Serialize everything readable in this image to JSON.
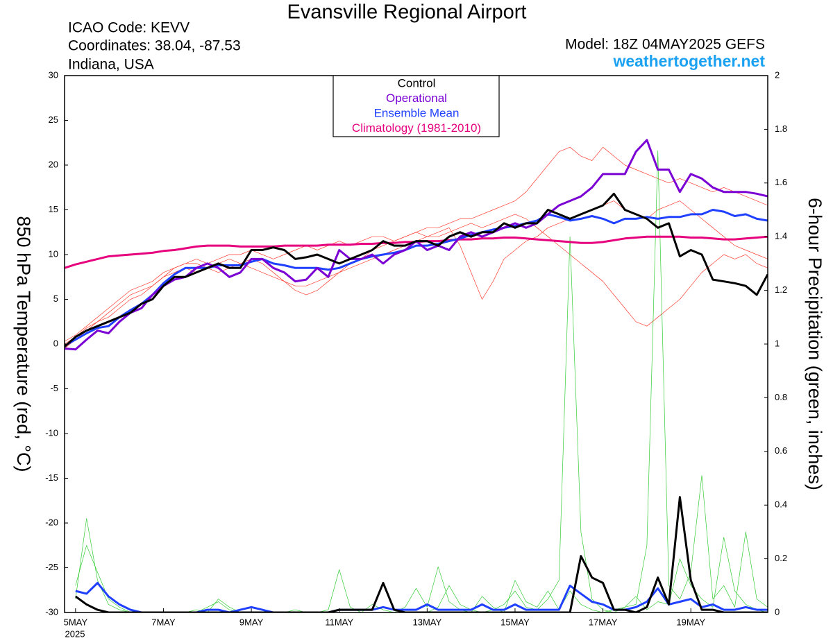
{
  "chart_data": {
    "type": "line",
    "title": "Evansville Regional Airport",
    "info_lines": [
      "ICAO Code: KEVV",
      "Coordinates: 38.04, -87.53",
      "Indiana, USA"
    ],
    "model": "Model: 18Z 04MAY2025 GEFS",
    "site": "weathertogether.net",
    "ylabel": "850 hPa Temperature (red, °C)",
    "y2label": "6-hour Precipitation (green, inches)",
    "x_year_label": "2025",
    "xlim": [
      4.75,
      20.75
    ],
    "xticks": [
      {
        "value": 5,
        "label": "5MAY"
      },
      {
        "value": 7,
        "label": "7MAY"
      },
      {
        "value": 9,
        "label": "9MAY"
      },
      {
        "value": 11,
        "label": "11MAY"
      },
      {
        "value": 13,
        "label": "13MAY"
      },
      {
        "value": 15,
        "label": "15MAY"
      },
      {
        "value": 17,
        "label": "17MAY"
      },
      {
        "value": 19,
        "label": "19MAY"
      }
    ],
    "ylim": [
      -30,
      30
    ],
    "yticks": [
      -30,
      -25,
      -20,
      -15,
      -10,
      -5,
      0,
      5,
      10,
      15,
      20,
      25,
      30
    ],
    "y2lim": [
      0,
      2
    ],
    "y2ticks": [
      0,
      0.2,
      0.4,
      0.6,
      0.8,
      1,
      1.2,
      1.4,
      1.6,
      1.8,
      2
    ],
    "legend": "top",
    "x": [
      4.75,
      5,
      5.25,
      5.5,
      5.75,
      6,
      6.25,
      6.5,
      6.75,
      7,
      7.25,
      7.5,
      7.75,
      8,
      8.25,
      8.5,
      8.75,
      9,
      9.25,
      9.5,
      9.75,
      10,
      10.25,
      10.5,
      10.75,
      11,
      11.25,
      11.5,
      11.75,
      12,
      12.25,
      12.5,
      12.75,
      13,
      13.25,
      13.5,
      13.75,
      14,
      14.25,
      14.5,
      14.75,
      15,
      15.25,
      15.5,
      15.75,
      16,
      16.25,
      16.5,
      16.75,
      17,
      17.25,
      17.5,
      17.75,
      18,
      18.25,
      18.5,
      18.75,
      19,
      19.25,
      19.5,
      19.75,
      20,
      20.25,
      20.5,
      20.75
    ],
    "series": [
      {
        "color": "#ff3b2f",
        "width": 0.7,
        "values": [
          0.0,
          0.8,
          1.8,
          2.5,
          3.5,
          4.5,
          5.5,
          6.0,
          6.5,
          7.5,
          8.0,
          8.5,
          8.0,
          8.5,
          9.0,
          9.5,
          9.0,
          8.5,
          8.0,
          7.5,
          7.0,
          6.5,
          6.5,
          7.0,
          7.5,
          8.0,
          8.5,
          9.0,
          9.5,
          10.0,
          10.5,
          11.0,
          11.5,
          12.0,
          12.0,
          12.5,
          13.0,
          13.5,
          13.0,
          13.5,
          14.0,
          14.5,
          14.0,
          13.0,
          12.0,
          11.0,
          10.0,
          9.0,
          8.0,
          7.0,
          5.5,
          4.0,
          2.5,
          2.0,
          3.0,
          4.0,
          5.0,
          6.5,
          8.0,
          9.0,
          10.0,
          9.5,
          10.0,
          9.0,
          8.5
        ]
      },
      {
        "color": "#ff3b2f",
        "width": 0.7,
        "values": [
          -0.5,
          0.5,
          1.5,
          2.5,
          3.0,
          4.0,
          5.0,
          5.5,
          6.5,
          7.5,
          8.5,
          9.0,
          9.5,
          9.0,
          9.5,
          10.0,
          10.0,
          10.5,
          10.0,
          9.5,
          10.0,
          10.5,
          11.0,
          10.5,
          11.0,
          11.5,
          11.0,
          11.5,
          12.0,
          12.0,
          11.5,
          12.0,
          12.5,
          13.0,
          13.0,
          13.5,
          14.0,
          14.0,
          14.5,
          15.0,
          15.5,
          16.0,
          17.0,
          18.5,
          20.0,
          21.5,
          22.0,
          21.0,
          20.5,
          22.0,
          21.0,
          20.0,
          19.5,
          19.0,
          18.5,
          18.0,
          18.5,
          18.0,
          17.5,
          17.0,
          17.5,
          17.0,
          16.5,
          16.0,
          15.5
        ]
      },
      {
        "color": "#ff3b2f",
        "width": 0.7,
        "values": [
          0.3,
          1.0,
          2.0,
          3.0,
          4.0,
          5.0,
          6.0,
          6.5,
          7.0,
          8.0,
          8.5,
          9.0,
          9.0,
          8.5,
          8.0,
          8.5,
          9.0,
          9.5,
          9.0,
          8.0,
          7.0,
          6.0,
          5.5,
          6.0,
          7.0,
          8.0,
          9.0,
          9.5,
          10.5,
          11.0,
          11.5,
          12.0,
          12.5,
          12.0,
          12.5,
          13.0,
          11.0,
          8.0,
          5.0,
          7.0,
          9.5,
          10.5,
          11.5,
          12.0,
          13.0,
          13.5,
          14.0,
          14.5,
          15.0,
          15.5,
          16.0,
          15.0,
          14.5,
          14.0,
          15.0,
          15.5,
          16.0,
          15.0,
          14.0,
          13.0,
          12.0,
          11.0,
          10.5,
          10.0,
          9.5
        ]
      },
      {
        "color": "#33cc33",
        "width": 0.7,
        "axis": "y2",
        "values": [
          null,
          0.1,
          0.25,
          0.15,
          0.05,
          0.02,
          0,
          0,
          0,
          0,
          0,
          0,
          0,
          0.02,
          0.04,
          0.01,
          0,
          0,
          0,
          0,
          0,
          0,
          0,
          0,
          0.01,
          0.16,
          0.02,
          0,
          0,
          0,
          0,
          0,
          0,
          0,
          0.02,
          0.1,
          0.03,
          0.01,
          0,
          0.01,
          0.03,
          0.08,
          0.02,
          0.01,
          0.05,
          0.12,
          1.4,
          0.3,
          0.05,
          0.01,
          0,
          0.02,
          0.06,
          0.01,
          0.04,
          0.03,
          0.2,
          0.1,
          0.05,
          0.02,
          0.28,
          0.08,
          0.03,
          0.01,
          0
        ]
      },
      {
        "color": "#33cc33",
        "width": 0.7,
        "axis": "y2",
        "values": [
          null,
          0.05,
          0.35,
          0.12,
          0.03,
          0.01,
          0,
          0,
          0,
          0,
          0,
          0,
          0.01,
          0,
          0.05,
          0.02,
          0,
          0,
          0,
          0,
          0,
          0.01,
          0,
          0,
          0,
          0,
          0,
          0,
          0.03,
          0.01,
          0,
          0.02,
          0.09,
          0.02,
          0.17,
          0.04,
          0.01,
          0,
          0.06,
          0.02,
          0,
          0.12,
          0.04,
          0.02,
          0.08,
          0.01,
          0.08,
          0.03,
          0.01,
          0,
          0.01,
          0.02,
          0.03,
          0.25,
          1.72,
          0.1,
          0.05,
          0.15,
          0.51,
          0.05,
          0.1,
          0.02,
          0.3,
          0.05,
          0.02
        ]
      },
      {
        "name": "Climatology (1981-2010)",
        "color": "#e6007e",
        "width": 3,
        "values": [
          8.5,
          8.9,
          9.2,
          9.5,
          9.8,
          9.9,
          10.0,
          10.1,
          10.2,
          10.4,
          10.5,
          10.7,
          10.9,
          11.0,
          11.0,
          11.0,
          10.9,
          10.9,
          10.9,
          10.9,
          11.0,
          11.0,
          11.0,
          11.0,
          11.1,
          11.1,
          11.1,
          11.2,
          11.2,
          11.3,
          11.3,
          11.4,
          11.4,
          11.5,
          11.5,
          11.6,
          11.7,
          11.7,
          11.8,
          11.8,
          11.9,
          11.9,
          11.8,
          11.7,
          11.6,
          11.5,
          11.4,
          11.3,
          11.3,
          11.4,
          11.6,
          11.8,
          11.9,
          12.0,
          12.0,
          12.0,
          12.0,
          11.9,
          11.9,
          11.8,
          11.7,
          11.7,
          11.8,
          11.9,
          12.0
        ]
      },
      {
        "color": "#2040ff",
        "width": 3,
        "axis": "y2",
        "values": [
          null,
          0.08,
          0.07,
          0.11,
          0.06,
          0.03,
          0.01,
          0,
          0,
          0,
          0,
          0,
          0,
          0.01,
          0.01,
          0,
          0.01,
          0.02,
          0.01,
          0,
          0,
          0,
          0,
          0,
          0,
          0.01,
          0.01,
          0.01,
          0.01,
          0.02,
          0.01,
          0.01,
          0.01,
          0.03,
          0.01,
          0.01,
          0.01,
          0.01,
          0.03,
          0.01,
          0.01,
          0.03,
          0.01,
          0.01,
          0.01,
          0.01,
          0.1,
          0.07,
          0.04,
          0.03,
          0.01,
          0.01,
          0.02,
          0.04,
          0.09,
          0.03,
          0.04,
          0.05,
          0.02,
          0.03,
          0.01,
          0.01,
          0.02,
          0.01,
          0.01
        ]
      },
      {
        "color": "#000000",
        "width": 3,
        "axis": "y2",
        "values": [
          null,
          0.06,
          0.03,
          0.01,
          0,
          0,
          0,
          0,
          0,
          0,
          0,
          0,
          0,
          0,
          0,
          0,
          0,
          0,
          0,
          0,
          0,
          0,
          0,
          0,
          0,
          0.01,
          0.01,
          0.01,
          0.01,
          0.11,
          0.01,
          0,
          0,
          0,
          0,
          0,
          0,
          0,
          0,
          0,
          0,
          0,
          0,
          0,
          0,
          0,
          0,
          0.21,
          0.13,
          0.11,
          0.01,
          0.01,
          0,
          0.02,
          0.13,
          0.03,
          0.43,
          0.12,
          0.01,
          0.01,
          0,
          0,
          0,
          0,
          0
        ]
      },
      {
        "name": "Ensemble Mean",
        "color": "#2040ff",
        "width": 3,
        "values": [
          -0.2,
          0.5,
          1.2,
          1.8,
          2.0,
          3.0,
          3.8,
          4.5,
          5.5,
          6.8,
          7.8,
          8.5,
          8.5,
          8.5,
          8.8,
          8.8,
          8.8,
          9.2,
          9.5,
          9.0,
          8.8,
          8.5,
          8.5,
          8.5,
          8.3,
          8.5,
          9.0,
          9.5,
          9.8,
          10.0,
          10.2,
          10.5,
          11.0,
          11.0,
          11.2,
          11.5,
          11.8,
          12.2,
          12.5,
          12.8,
          13.0,
          13.2,
          13.5,
          13.8,
          14.5,
          14.2,
          13.8,
          14.0,
          14.3,
          14.0,
          13.5,
          14.0,
          14.0,
          14.2,
          14.0,
          14.2,
          14.2,
          14.5,
          14.5,
          15.0,
          14.8,
          14.3,
          14.5,
          14.0,
          13.8
        ]
      },
      {
        "name": "Operational",
        "color": "#7a00d4",
        "width": 3,
        "values": [
          -0.5,
          -0.6,
          0.5,
          1.5,
          1.2,
          2.5,
          3.5,
          4.0,
          5.5,
          6.5,
          7.2,
          7.5,
          8.5,
          9.0,
          8.5,
          7.5,
          8.0,
          9.5,
          9.5,
          8.5,
          8.0,
          7.0,
          7.2,
          8.5,
          7.5,
          10.5,
          9.5,
          9.5,
          10.0,
          9.0,
          10.0,
          10.5,
          11.5,
          10.5,
          11.0,
          10.5,
          12.0,
          12.5,
          12.0,
          12.5,
          13.0,
          13.5,
          13.0,
          13.5,
          14.5,
          15.5,
          16.0,
          16.5,
          17.5,
          19.0,
          19.0,
          19.0,
          21.5,
          22.8,
          19.5,
          19.5,
          17.0,
          19.0,
          18.5,
          17.5,
          17.0,
          17.0,
          17.0,
          16.8,
          16.5
        ]
      },
      {
        "name": "Control",
        "color": "#000000",
        "width": 3,
        "values": [
          -0.3,
          0.8,
          1.5,
          2.0,
          2.5,
          3.0,
          3.5,
          4.5,
          5.0,
          6.5,
          7.5,
          7.5,
          8.0,
          8.5,
          9.0,
          8.5,
          8.5,
          10.5,
          10.5,
          10.8,
          10.5,
          9.5,
          9.7,
          10.0,
          9.5,
          9.0,
          9.5,
          10.0,
          10.5,
          11.5,
          11.0,
          11.0,
          11.5,
          11.5,
          11.0,
          12.0,
          12.5,
          12.0,
          12.5,
          12.5,
          13.5,
          13.0,
          13.5,
          13.5,
          15.0,
          14.5,
          14.0,
          14.5,
          15.0,
          15.5,
          16.8,
          15.0,
          14.5,
          14.0,
          13.0,
          13.5,
          9.8,
          10.5,
          10.0,
          7.2,
          7.0,
          6.8,
          6.5,
          5.5,
          7.8
        ]
      }
    ]
  }
}
